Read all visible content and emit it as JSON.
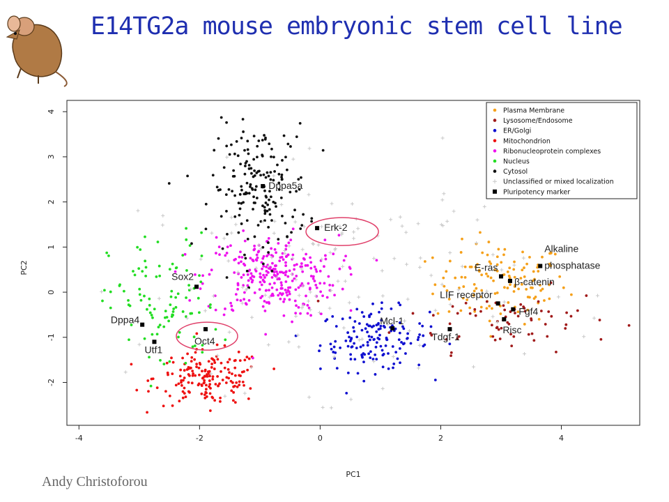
{
  "slide": {
    "title": "E14TG2a mouse embryonic stem cell line",
    "author": "Andy Christoforou"
  },
  "chart_data": {
    "type": "scatter",
    "xlabel": "PC1",
    "ylabel": "PC2",
    "xlim": [
      -4.2,
      5.3
    ],
    "ylim": [
      -2.95,
      4.25
    ],
    "xticks": [
      -4,
      -2,
      0,
      2,
      4
    ],
    "yticks": [
      -2,
      -1,
      0,
      1,
      2,
      3,
      4
    ],
    "legend_position": "top-right",
    "legend": [
      {
        "label": "Plasma Membrane",
        "color": "#f5a01a",
        "marker": "dot"
      },
      {
        "label": "Lysosome/Endosome",
        "color": "#a01a1a",
        "marker": "dot"
      },
      {
        "label": "ER/Golgi",
        "color": "#1010d0",
        "marker": "dot"
      },
      {
        "label": "Mitochondrion",
        "color": "#ee1111",
        "marker": "dot"
      },
      {
        "label": "Ribonucleoprotein complexes",
        "color": "#ee11ee",
        "marker": "dot"
      },
      {
        "label": "Nucleus",
        "color": "#22dd22",
        "marker": "dot"
      },
      {
        "label": "Cytosol",
        "color": "#111111",
        "marker": "dot"
      },
      {
        "label": "Unclassified or mixed localization",
        "color": "#c8c8c8",
        "marker": "plus"
      },
      {
        "label": "Pluripotency marker",
        "color": "#000000",
        "marker": "square"
      }
    ],
    "clusters": [
      {
        "name": "Plasma Membrane",
        "color": "#f5a01a",
        "cx": 3.0,
        "cy": 0.2,
        "sx": 0.55,
        "sy": 0.45,
        "n": 130
      },
      {
        "name": "Lysosome/Endosome",
        "color": "#a01a1a",
        "cx": 3.1,
        "cy": -0.6,
        "sx": 0.9,
        "sy": 0.35,
        "n": 70
      },
      {
        "name": "ER/Golgi",
        "color": "#1010d0",
        "cx": 0.9,
        "cy": -1.05,
        "sx": 0.45,
        "sy": 0.35,
        "n": 150
      },
      {
        "name": "Mitochondrion",
        "color": "#ee1111",
        "cx": -1.85,
        "cy": -1.9,
        "sx": 0.45,
        "sy": 0.3,
        "n": 170
      },
      {
        "name": "Ribonucleoprotein complexes",
        "color": "#ee11ee",
        "cx": -0.8,
        "cy": 0.35,
        "sx": 0.55,
        "sy": 0.45,
        "n": 280
      },
      {
        "name": "Nucleus",
        "color": "#22dd22",
        "cx": -2.6,
        "cy": -0.3,
        "sx": 0.45,
        "sy": 0.8,
        "n": 100
      },
      {
        "name": "Cytosol",
        "color": "#111111",
        "cx": -1.0,
        "cy": 2.3,
        "sx": 0.4,
        "sy": 0.7,
        "n": 180
      },
      {
        "name": "Unclassified or mixed localization",
        "color": "#c8c8c8",
        "cx": 0.2,
        "cy": 0.3,
        "sx": 1.6,
        "sy": 1.2,
        "n": 160
      }
    ],
    "markers": [
      {
        "label": "Dppa5a",
        "x": -0.95,
        "y": 2.35
      },
      {
        "label": "Erk-2",
        "x": -0.05,
        "y": 1.42
      },
      {
        "label": "Sox2",
        "x": -2.05,
        "y": 0.12
      },
      {
        "label": "Dppa4",
        "x": -2.95,
        "y": -0.72
      },
      {
        "label": "Utf1",
        "x": -2.75,
        "y": -1.1
      },
      {
        "label": "Oct4",
        "x": -1.9,
        "y": -0.82
      },
      {
        "label": "Mcl-1",
        "x": 1.2,
        "y": -0.8
      },
      {
        "label": "Tdgf-1",
        "x": 2.15,
        "y": -0.82
      },
      {
        "label": "LIF receptor",
        "x": 2.95,
        "y": -0.25
      },
      {
        "label": "E-ras",
        "x": 3.0,
        "y": 0.35
      },
      {
        "label": "β-catenin",
        "x": 3.15,
        "y": 0.25
      },
      {
        "label": "Alkaline phosphatase",
        "x": 3.65,
        "y": 0.58
      },
      {
        "label": "Fgf4",
        "x": 3.2,
        "y": -0.38
      },
      {
        "label": "Risc",
        "x": 3.05,
        "y": -0.6
      }
    ],
    "highlighted": [
      "Erk-2",
      "Oct4"
    ]
  }
}
